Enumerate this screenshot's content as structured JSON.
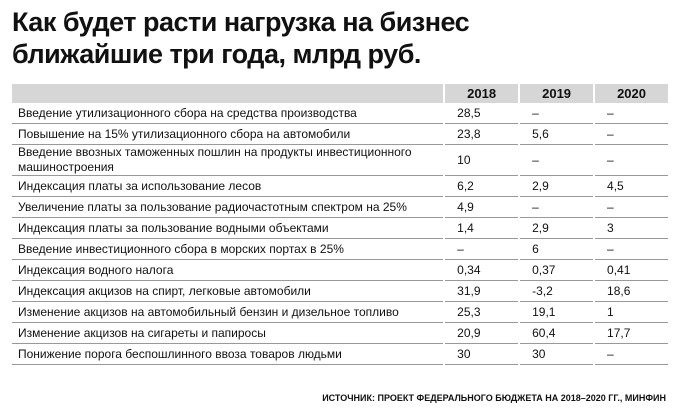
{
  "title": [
    "Как будет расти нагрузка на бизнес",
    "ближайшие три года, млрд руб."
  ],
  "table": {
    "header": [
      "2018",
      "2019",
      "2020"
    ],
    "rows": [
      [
        "Введение утилизационного сбора на средства производства",
        "28,5",
        "–",
        "–"
      ],
      [
        "Повышение на 15% утилизационного сбора на автомобили",
        "23,8",
        "5,6",
        "–"
      ],
      [
        "Введение ввозных таможенных пошлин на продукты инвестиционного машиностроения",
        "10",
        "–",
        "–"
      ],
      [
        "Индексация платы за использование лесов",
        "6,2",
        "2,9",
        "4,5"
      ],
      [
        "Увеличение платы за пользование радиочастотным спектром на 25%",
        "4,9",
        "–",
        "–"
      ],
      [
        "Индексация платы за пользование водными объектами",
        "1,4",
        "2,9",
        "3"
      ],
      [
        "Введение инвестиционного сбора в морских портах в 25%",
        "–",
        "6",
        "–"
      ],
      [
        "Индексация водного налога",
        "0,34",
        "0,37",
        "0,41"
      ],
      [
        "Индексация акцизов на спирт, легковые автомобили",
        "31,9",
        "-3,2",
        "18,6"
      ],
      [
        "Изменение акцизов на автомобильный бензин и дизельное топливо",
        "25,3",
        "19,1",
        "1"
      ],
      [
        "Изменение акцизов на сигареты и папиросы",
        "20,9",
        "60,4",
        "17,7"
      ],
      [
        "Понижение порога беспошлинного ввоза товаров людьми",
        "30",
        "30",
        "–"
      ]
    ]
  },
  "source": "ИСТОЧНИК: ПРОЕКТ ФЕДЕРАЛЬНОГО БЮДЖЕТА НА 2018–2020 ГГ., МИНФИН"
}
